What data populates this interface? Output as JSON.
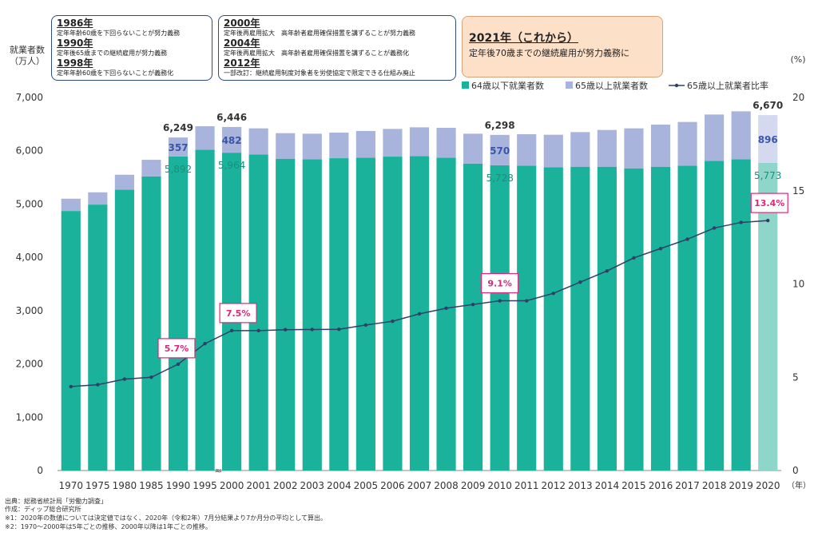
{
  "policy_notes": {
    "box1": [
      {
        "year": "1986年",
        "text": "定年年齢60歳を下回らないことが努力義務"
      },
      {
        "year": "1990年",
        "text": "定年後65歳までの継続雇用が努力義務"
      },
      {
        "year": "1998年",
        "text": "定年年齢60歳を下回らないことが義務化"
      }
    ],
    "box2": [
      {
        "year": "2000年",
        "text": "定年後再雇用拡大　高年齢者雇用確保措置を講ずることが努力義務"
      },
      {
        "year": "2004年",
        "text": "定年後再雇用拡大　高年齢者雇用確保措置を講ずることが義務化"
      },
      {
        "year": "2012年",
        "text": "一部改訂：継続雇用制度対象者を労使協定で限定できる仕組み廃止"
      }
    ],
    "highlight": {
      "title": "2021年（これから）",
      "text": "定年後70歳までの継続雇用が努力義務に"
    }
  },
  "axis_labels": {
    "left_line1": "就業者数",
    "left_line2": "（万人）",
    "right_unit": "(%)",
    "x_unit": "（年）"
  },
  "legend": {
    "under64": "64歳以下就業者数",
    "over65": "65歳以上就業者数",
    "ratio": "65歳以上就業者比率"
  },
  "colors": {
    "under64": "#1ab29a",
    "over65": "#a9b4dc",
    "under64_2020": "#8fd6ca",
    "over65_2020": "#d5d9ef",
    "line": "#2e4066",
    "highlight_box": "#e0267a",
    "over65_label": "#3a56a8"
  },
  "chart_data": {
    "type": "bar",
    "stacked": true,
    "categories": [
      "1970",
      "1975",
      "1980",
      "1985",
      "1990",
      "1995",
      "2000",
      "2001",
      "2002",
      "2003",
      "2004",
      "2005",
      "2006",
      "2007",
      "2008",
      "2009",
      "2010",
      "2011",
      "2012",
      "2013",
      "2014",
      "2015",
      "2016",
      "2017",
      "2018",
      "2019",
      "2020"
    ],
    "series": [
      {
        "name": "64歳以下就業者数",
        "values": [
          4870,
          4990,
          5270,
          5520,
          5892,
          6020,
          5964,
          5930,
          5850,
          5840,
          5860,
          5870,
          5890,
          5900,
          5870,
          5760,
          5728,
          5720,
          5690,
          5700,
          5700,
          5670,
          5700,
          5720,
          5810,
          5840,
          5773
        ]
      },
      {
        "name": "65歳以上就業者数",
        "values": [
          230,
          230,
          280,
          310,
          357,
          440,
          482,
          490,
          480,
          480,
          480,
          500,
          520,
          540,
          560,
          560,
          570,
          590,
          610,
          650,
          690,
          750,
          790,
          820,
          870,
          900,
          896
        ]
      }
    ],
    "totals_labeled": {
      "1990": "6,249",
      "2000": "6,446",
      "2010": "6,298",
      "2020": "6,670"
    },
    "under64_labeled": {
      "1990": "5,892",
      "2000": "5,964",
      "2010": "5,728",
      "2020": "5,773"
    },
    "over65_labeled": {
      "1990": "357",
      "2000": "482",
      "2010": "570",
      "2020": "896"
    },
    "ratio_series": {
      "name": "65歳以上就業者比率",
      "axis": "right",
      "values": [
        4.5,
        4.6,
        4.9,
        5.0,
        5.7,
        6.8,
        7.5,
        7.5,
        7.55,
        7.56,
        7.57,
        7.8,
        8.0,
        8.4,
        8.7,
        8.9,
        9.1,
        9.1,
        9.5,
        10.1,
        10.7,
        11.4,
        11.9,
        12.4,
        13.0,
        13.3,
        13.4
      ]
    },
    "highlighted_ratios": {
      "1990": "5.7%",
      "2000": "7.5%",
      "2010": "9.1%",
      "2020": "13.4%"
    },
    "y_left": {
      "min": 0,
      "max": 7000,
      "ticks": [
        "0",
        "1,000",
        "2,000",
        "3,000",
        "4,000",
        "5,000",
        "6,000",
        "7,000"
      ]
    },
    "y_right": {
      "min": 0,
      "max": 20,
      "ticks": [
        "0",
        "5",
        "10",
        "15",
        "20"
      ]
    },
    "axis_break_between": [
      "1995",
      "2000"
    ],
    "axis_break_symbol": "≈",
    "grid": false,
    "legend_position": "top-right"
  },
  "footnotes": [
    "出典：総務省統計局「労働力調査」",
    "作成：ディップ総合研究所",
    "※1：2020年の数値については決定値ではなく、2020年（令和2年）7月分結果より7か月分の平均として算出。",
    "※2：1970〜2000年は5年ごとの推移、2000年以降は1年ごとの推移。"
  ]
}
